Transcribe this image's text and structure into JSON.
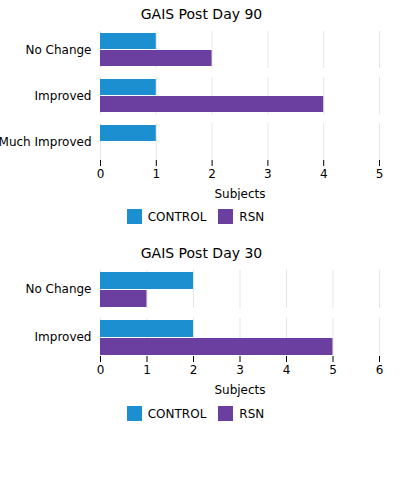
{
  "chart_data": [
    {
      "type": "bar",
      "orientation": "horizontal",
      "title": "GAIS Post Day 90",
      "categories": [
        "No Change",
        "Improved",
        "Much Improved"
      ],
      "series": [
        {
          "name": "CONTROL",
          "color": "#1B8FD0",
          "values": [
            1,
            1,
            1
          ]
        },
        {
          "name": "RSN",
          "color": "#6B3FA0",
          "values": [
            2,
            4,
            0
          ]
        }
      ],
      "xlim": [
        0,
        5
      ],
      "xticks": [
        0,
        1,
        2,
        3,
        4,
        5
      ],
      "xlabel": "Subjects",
      "grid": true,
      "legend": "bottom"
    },
    {
      "type": "bar",
      "orientation": "horizontal",
      "title": "GAIS Post Day 30",
      "categories": [
        "No Change",
        "Improved"
      ],
      "series": [
        {
          "name": "CONTROL",
          "color": "#1B8FD0",
          "values": [
            2,
            2
          ]
        },
        {
          "name": "RSN",
          "color": "#6B3FA0",
          "values": [
            1,
            5
          ]
        }
      ],
      "xlim": [
        0,
        6
      ],
      "xticks": [
        0,
        1,
        2,
        3,
        4,
        5,
        6
      ],
      "xlabel": "Subjects",
      "grid": true,
      "legend": "bottom"
    }
  ]
}
